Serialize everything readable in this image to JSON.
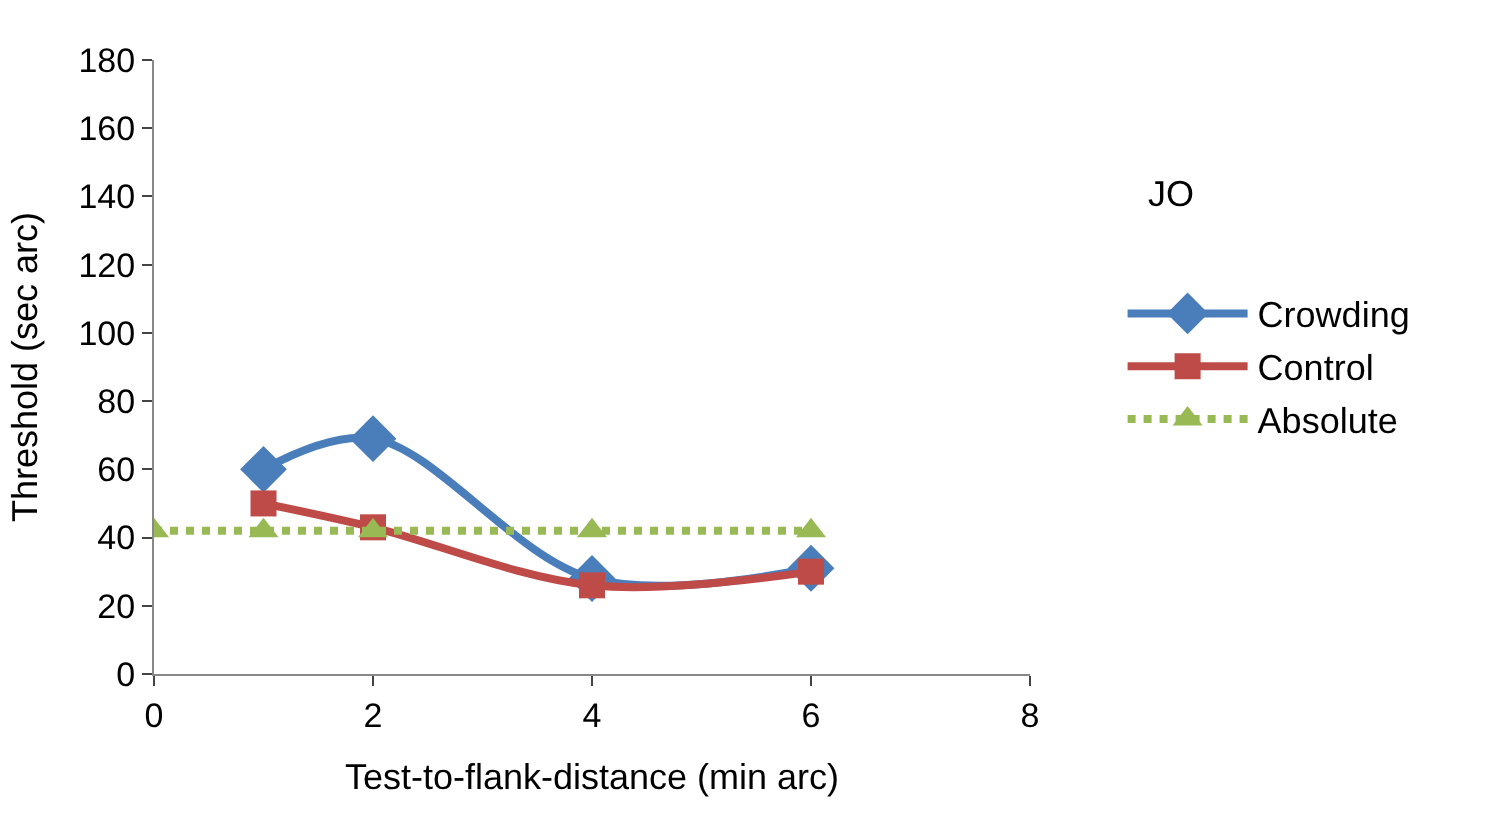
{
  "chart_data": {
    "type": "line",
    "xlabel": "Test-to-flank-distance (min arc)",
    "ylabel": "Threshold (sec arc)",
    "annotations": [
      "JO"
    ],
    "xlim": [
      0,
      8
    ],
    "xticks": [
      0,
      2,
      4,
      6,
      8
    ],
    "ylim": [
      0,
      180
    ],
    "yticks": [
      0,
      20,
      40,
      60,
      80,
      100,
      120,
      140,
      160,
      180
    ],
    "legend": "right",
    "series": [
      {
        "name": "Crowding",
        "color": "#4a7ebb",
        "x": [
          1,
          2,
          4,
          6
        ],
        "values": [
          60,
          69,
          28,
          31
        ],
        "marker": "diamond",
        "line_style": "solid"
      },
      {
        "name": "Control",
        "color": "#be4b48",
        "x": [
          1,
          2,
          4,
          6
        ],
        "values": [
          50,
          43,
          26,
          30
        ],
        "marker": "square",
        "line_style": "solid"
      },
      {
        "name": "Absolute",
        "color": "#98b954",
        "x": [
          0,
          1,
          2,
          4,
          6
        ],
        "values": [
          42,
          42,
          42,
          42,
          42
        ],
        "marker": "triangle",
        "line_style": "dotted"
      }
    ]
  }
}
